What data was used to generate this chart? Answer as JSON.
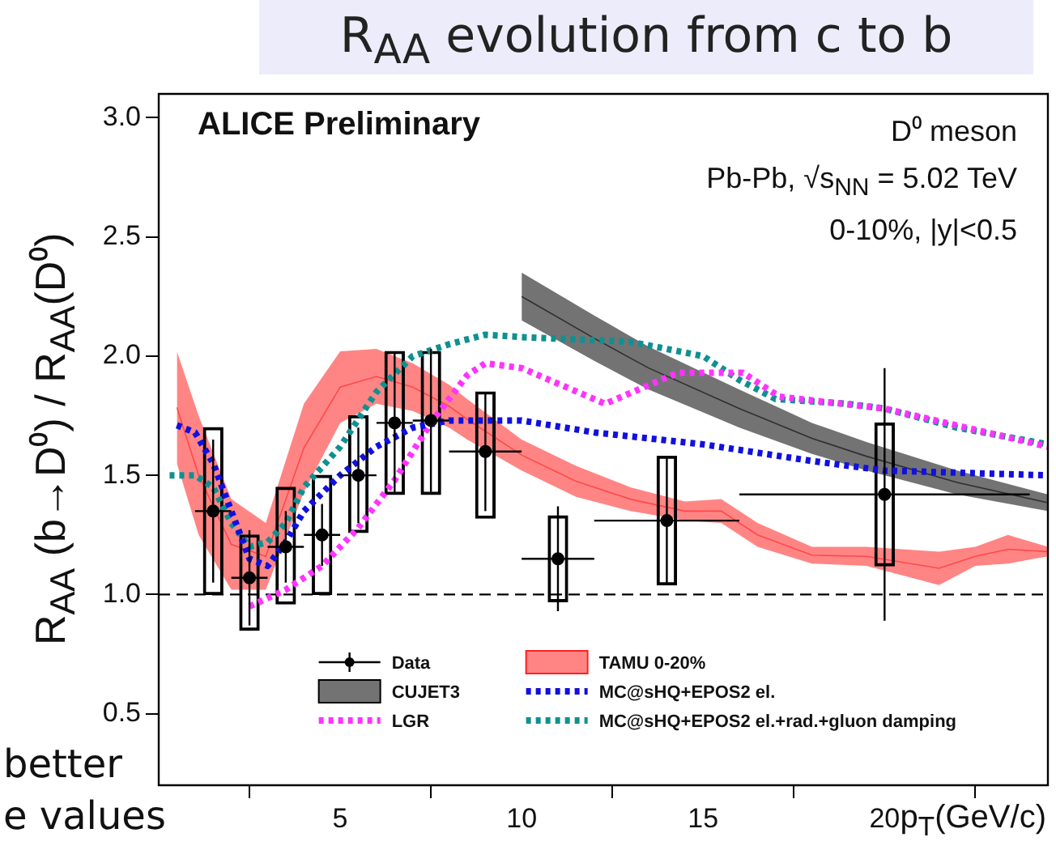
{
  "chart_data": {
    "type": "scatter",
    "title": "R$_{AA}$ evolution from c to b",
    "xlabel": "p$_{T}$(GeV/c)",
    "ylabel": "R$_{AA}$ (b→D⁰) / R$_{AA}$(D⁰)",
    "annotations": [
      "ALICE Preliminary",
      "D⁰ meson",
      "Pb-Pb, √s$_{NN}$ = 5.02 TeV",
      "0-10%, |y|<0.5",
      "better",
      "e values"
    ],
    "xlim": [
      0,
      24.5
    ],
    "xticks": [
      5,
      10,
      15,
      20
    ],
    "ylim": [
      0.2,
      3.1
    ],
    "yticks": [
      0.5,
      {
        "value": 1,
        "label": "1.0"
      },
      1.5,
      {
        "value": 2,
        "label": "2.0"
      },
      2.5,
      {
        "value": 3,
        "label": "3.0"
      }
    ],
    "grid": false,
    "legend": "bottom",
    "ref_lines": [
      {
        "axis": "y",
        "value": 1,
        "line_style": "dashed",
        "color": "#000000"
      }
    ],
    "series": [
      {
        "name": "Data",
        "type": "scatter",
        "marker": "circle",
        "color": "#000000",
        "x": [
          1.5,
          2.5,
          3.5,
          4.5,
          5.5,
          6.5,
          7.5,
          9,
          11,
          14,
          20
        ],
        "values": [
          1.35,
          1.07,
          1.2,
          1.25,
          1.5,
          1.72,
          1.73,
          1.6,
          1.15,
          1.31,
          1.42
        ],
        "errors": [
          0.3,
          0.2,
          0.15,
          0.13,
          0.2,
          0.3,
          0.3,
          0.25,
          0.22,
          0.27,
          0.53
        ],
        "xerrors": [
          0.5,
          0.5,
          0.5,
          0.5,
          0.5,
          0.5,
          0.5,
          1,
          1,
          2,
          4
        ]
      },
      {
        "name": "TAMU 0-20%",
        "type": "line",
        "color": "#ff2020",
        "x": [
          0.5,
          1.1,
          2.0,
          2.95,
          4.0,
          5.0,
          6,
          7,
          8,
          8.5,
          10,
          11.5,
          13,
          14.5,
          15.5,
          16.5,
          18,
          19.5,
          21.5,
          22.5,
          23.4,
          24.5
        ],
        "values": [
          1.785,
          1.5,
          1.21,
          1.16,
          1.615,
          1.87,
          1.915,
          1.87,
          1.79,
          1.735,
          1.585,
          1.475,
          1.4,
          1.35,
          1.35,
          1.25,
          1.165,
          1.16,
          1.11,
          1.16,
          1.19,
          1.18
        ],
        "upper": [
          2.02,
          1.75,
          1.4,
          1.3,
          1.8,
          2.02,
          2.03,
          1.97,
          1.88,
          1.82,
          1.65,
          1.54,
          1.45,
          1.39,
          1.4,
          1.3,
          1.2,
          1.2,
          1.18,
          1.2,
          1.25,
          1.2
        ],
        "lower": [
          1.55,
          1.25,
          1.02,
          1.02,
          1.43,
          1.72,
          1.8,
          1.77,
          1.7,
          1.65,
          1.52,
          1.41,
          1.35,
          1.31,
          1.3,
          1.2,
          1.13,
          1.12,
          1.04,
          1.12,
          1.13,
          1.16
        ]
      },
      {
        "name": "CUJET3",
        "type": "line",
        "color": "#000000",
        "x": [
          10,
          12,
          13.5,
          16,
          18,
          19.5,
          22,
          24.5
        ],
        "values": [
          2.25,
          2.075,
          1.95,
          1.78,
          1.655,
          1.58,
          1.47,
          1.385
        ],
        "upper": [
          2.35,
          2.17,
          2.04,
          1.86,
          1.72,
          1.64,
          1.52,
          1.42
        ],
        "lower": [
          2.15,
          1.98,
          1.86,
          1.7,
          1.59,
          1.52,
          1.42,
          1.35
        ]
      },
      {
        "name": "MC@sHQ+EPOS2 el.",
        "type": "line",
        "line_style": "dotted",
        "color": "#1010e0",
        "x": [
          0.5,
          1,
          1.5,
          2,
          2.5,
          3,
          3.5,
          4,
          5,
          6,
          7,
          8,
          10,
          12,
          15,
          18,
          20,
          24.5
        ],
        "values": [
          1.71,
          1.68,
          1.55,
          1.35,
          1.15,
          1.12,
          1.22,
          1.35,
          1.5,
          1.62,
          1.7,
          1.73,
          1.73,
          1.68,
          1.63,
          1.56,
          1.52,
          1.5
        ]
      },
      {
        "name": "LGR",
        "type": "line",
        "line_style": "dotted",
        "color": "#ff33ff",
        "x": [
          2.5,
          3.5,
          4.5,
          5.5,
          6.5,
          7.5,
          8.5,
          9,
          10,
          12.3,
          14.3,
          16.1,
          17.1,
          20,
          24.5
        ],
        "values": [
          0.95,
          1.02,
          1.12,
          1.28,
          1.48,
          1.72,
          1.92,
          1.97,
          1.95,
          1.8,
          1.93,
          1.93,
          1.83,
          1.78,
          1.62
        ]
      },
      {
        "name": "MC@sHQ+EPOS2 el.+rad.+gluon damping",
        "type": "line",
        "line_style": "dotted",
        "color": "#109090",
        "x": [
          0.3,
          1,
          1.5,
          2,
          2.5,
          3,
          3.5,
          4,
          5,
          6,
          7,
          8,
          9,
          10,
          13,
          15,
          16,
          17,
          19,
          20,
          22,
          24.5
        ],
        "values": [
          1.5,
          1.5,
          1.45,
          1.3,
          1.2,
          1.22,
          1.3,
          1.45,
          1.62,
          1.85,
          2.0,
          2.05,
          2.09,
          2.08,
          2.06,
          2.0,
          1.9,
          1.82,
          1.8,
          1.78,
          1.7,
          1.63
        ]
      },
      {
        "type": "bar",
        "color": "#000000",
        "x": [
          1.5,
          2.5,
          3.5,
          4.5,
          5.5,
          6.5,
          7.5,
          9,
          11,
          14,
          20
        ],
        "base": [
          1.0,
          0.85,
          0.96,
          1.0,
          1.26,
          1.42,
          1.42,
          1.32,
          0.97,
          1.04,
          1.12
        ],
        "values": [
          0.7,
          0.4,
          0.49,
          0.5,
          0.49,
          0.6,
          0.6,
          0.53,
          0.36,
          0.54,
          0.6
        ]
      }
    ]
  }
}
